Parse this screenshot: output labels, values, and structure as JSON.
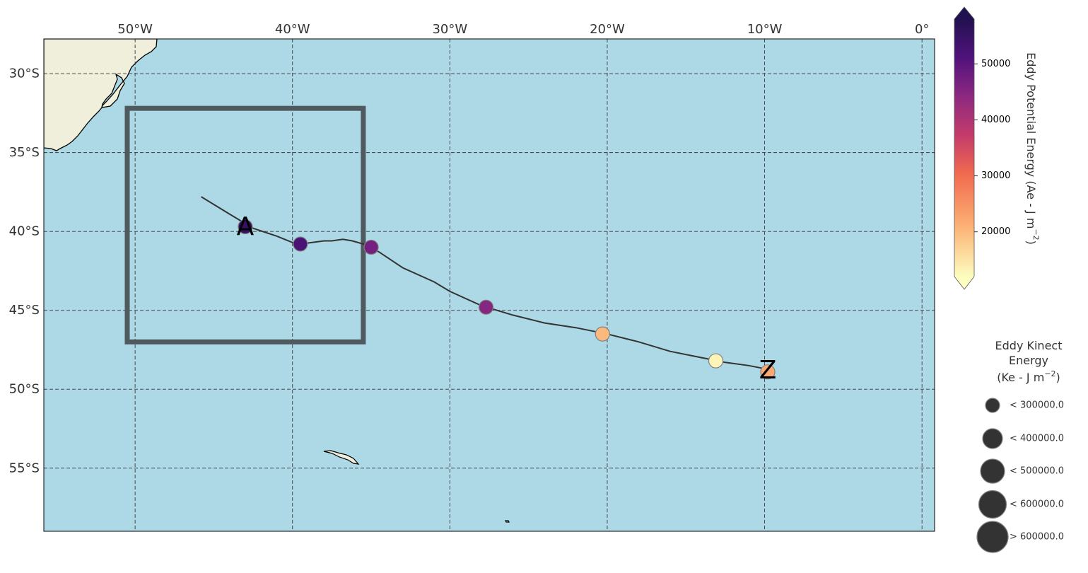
{
  "map": {
    "projection": "PlateCarree",
    "extent": {
      "lon_min": -55.8,
      "lon_max": 0.8,
      "lat_min": -59.0,
      "lat_max": -27.8
    },
    "colors": {
      "ocean": "#add8e6",
      "land": "#f0efdc",
      "grid": "#3a3a3a",
      "box": "#4e5a5e",
      "track": "#333333"
    },
    "gridlines": {
      "style": "dashed",
      "lon_ticks": [
        -50,
        -40,
        -30,
        -20,
        -10,
        0
      ],
      "lat_ticks": [
        -30,
        -35,
        -40,
        -45,
        -50,
        -55
      ]
    },
    "lon_labels": [
      "50°W",
      "40°W",
      "30°W",
      "20°W",
      "10°W",
      "0°"
    ],
    "lat_labels": [
      "30°S",
      "35°S",
      "40°S",
      "45°S",
      "50°S",
      "55°S"
    ],
    "region_box": {
      "lon_min": -50.5,
      "lon_max": -35.5,
      "lat_min": -47.0,
      "lat_max": -32.2
    },
    "start_marker": "A",
    "end_marker": "Z"
  },
  "chart_data": {
    "type": "scatter",
    "track": {
      "lon": [
        -45.8,
        -44.0,
        -42.5,
        -41.0,
        -40.0,
        -39.5,
        -38.0,
        -37.5,
        -36.8,
        -36.2,
        -35.5,
        -34.5,
        -33.0,
        -31.0,
        -30.0,
        -28.0,
        -26.0,
        -24.0,
        -22.0,
        -20.0,
        -18.0,
        -16.0,
        -14.0,
        -12.5,
        -11.0,
        -10.0,
        -9.5
      ],
      "lat": [
        -37.8,
        -38.9,
        -39.8,
        -40.3,
        -40.7,
        -40.8,
        -40.6,
        -40.6,
        -40.5,
        -40.6,
        -40.8,
        -41.3,
        -42.3,
        -43.2,
        -43.8,
        -44.7,
        -45.3,
        -45.8,
        -46.1,
        -46.5,
        -47.0,
        -47.6,
        -48.0,
        -48.3,
        -48.5,
        -48.7,
        -48.8
      ]
    },
    "points": [
      {
        "lon": -43.0,
        "lat": -39.7,
        "epe": 55000,
        "ke_class": 1
      },
      {
        "lon": -39.5,
        "lat": -40.8,
        "epe": 52000,
        "ke_class": 1
      },
      {
        "lon": -35.0,
        "lat": -41.0,
        "epe": 47000,
        "ke_class": 1
      },
      {
        "lon": -27.7,
        "lat": -44.8,
        "epe": 45000,
        "ke_class": 1
      },
      {
        "lon": -20.3,
        "lat": -46.5,
        "epe": 20000,
        "ke_class": 1
      },
      {
        "lon": -13.1,
        "lat": -48.2,
        "epe": 13000,
        "ke_class": 1
      },
      {
        "lon": -9.8,
        "lat": -48.9,
        "epe": 22000,
        "ke_class": 1
      }
    ],
    "colorbar": {
      "label": "Eddy Potential Energy (Ae -  J m",
      "label_exponent": "−2",
      "label_close": ")",
      "colormap": "magma_r",
      "vmin": 12000,
      "vmax": 58000,
      "ticks": [
        20000,
        30000,
        40000,
        50000
      ],
      "tick_labels": [
        "20000",
        "30000",
        "40000",
        "50000"
      ],
      "extend": "both"
    },
    "size_legend": {
      "title_line1": "Eddy Kinect",
      "title_line2": "Energy",
      "title_line3_a": "(Ke -  J m",
      "title_line3_exp": "−2",
      "title_line3_b": ")",
      "entries": [
        {
          "label": "< 300000.0"
        },
        {
          "label": "< 400000.0"
        },
        {
          "label": "< 500000.0"
        },
        {
          "label": "< 600000.0"
        },
        {
          "label": "> 600000.0"
        }
      ]
    }
  }
}
